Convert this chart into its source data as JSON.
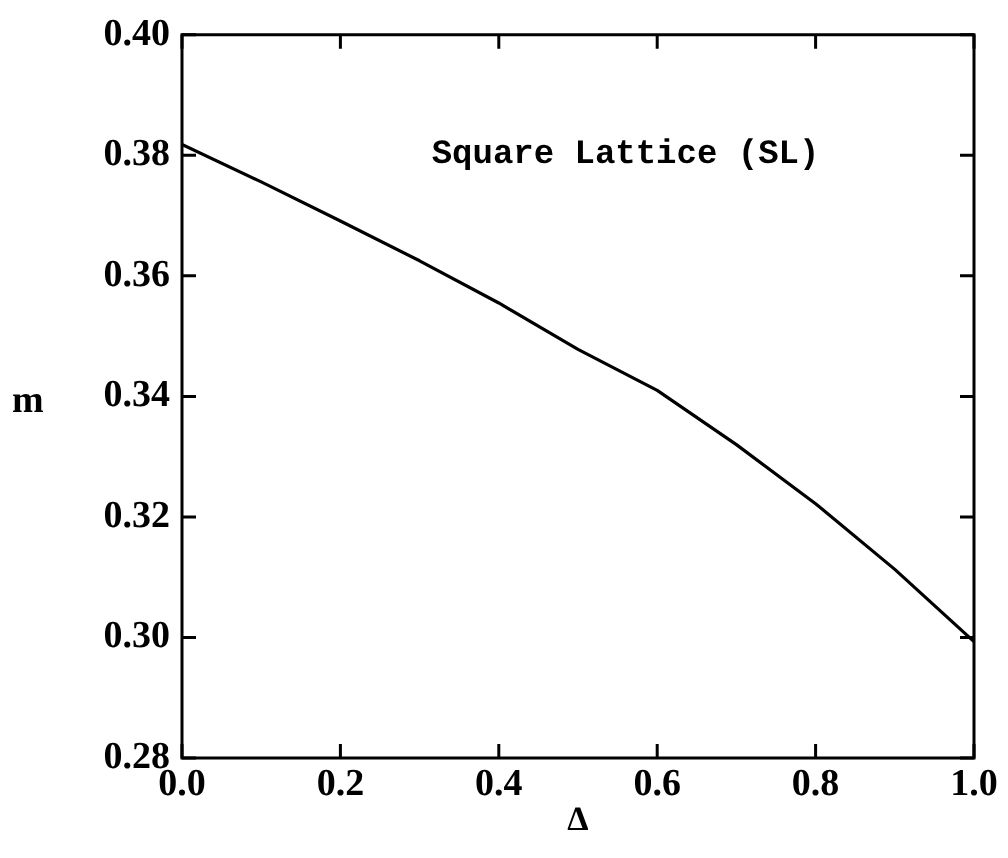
{
  "chart_data": {
    "type": "line",
    "xlabel": "Δ",
    "ylabel": "m",
    "annotations": [
      "Square Lattice (SL)"
    ],
    "x": [
      0,
      0.1,
      0.2,
      0.3,
      0.4,
      0.5,
      0.6,
      0.7,
      0.8,
      0.9,
      1.0
    ],
    "series": [
      {
        "color": "#000000",
        "values": [
          0.3818,
          0.3756,
          0.3691,
          0.3625,
          0.3555,
          0.3478,
          0.341,
          0.332,
          0.3222,
          0.3113,
          0.2993
        ]
      }
    ],
    "xlim": [
      0,
      1.0
    ],
    "xticks": [
      {
        "value": 0,
        "label": "0.0"
      },
      0.2,
      0.4,
      0.6,
      0.8,
      {
        "value": 1,
        "label": "1.0"
      }
    ],
    "ylim": [
      0.28,
      0.4
    ],
    "yticks": [
      0.28,
      {
        "value": 0.3,
        "label": "0.30"
      },
      0.32,
      0.34,
      0.36,
      0.38,
      {
        "value": 0.4,
        "label": "0.40"
      }
    ],
    "grid": false,
    "legend": false,
    "marker": "none",
    "line_style": "solid"
  }
}
